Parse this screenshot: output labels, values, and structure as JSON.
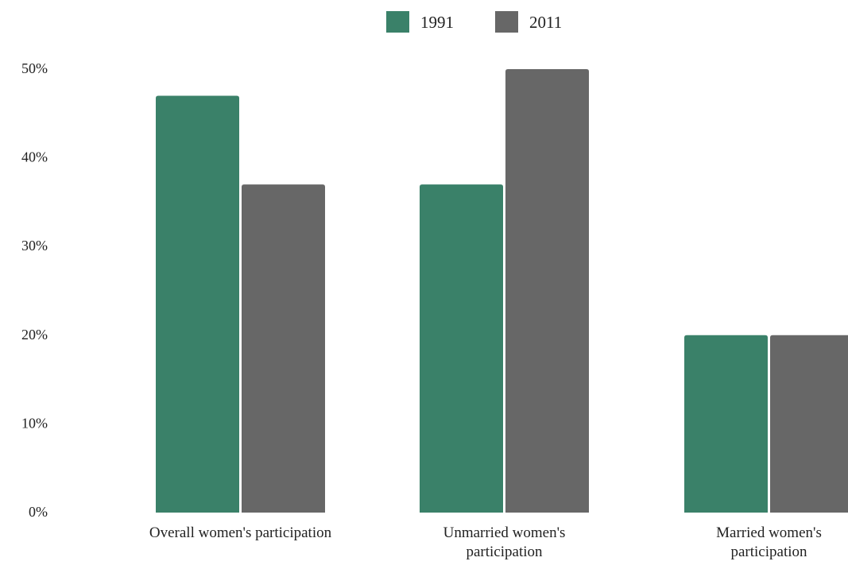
{
  "chart_data": {
    "type": "bar",
    "title": "",
    "xlabel": "",
    "ylabel": "",
    "categories": [
      [
        "Overall women's participation"
      ],
      [
        "Unmarried women's",
        "participation"
      ],
      [
        "Married women's",
        "participation"
      ]
    ],
    "series": [
      {
        "name": "1991",
        "color": "#3a8169",
        "values": [
          47,
          37,
          20
        ]
      },
      {
        "name": "2011",
        "color": "#676767",
        "values": [
          37,
          50,
          20
        ]
      }
    ],
    "ylim": [
      0,
      50
    ],
    "yticks": [
      0,
      10,
      20,
      30,
      40,
      50
    ],
    "ytick_labels": [
      "0%",
      "10%",
      "20%",
      "30%",
      "40%",
      "50%"
    ],
    "grid": false,
    "legend_position": "top-center"
  }
}
